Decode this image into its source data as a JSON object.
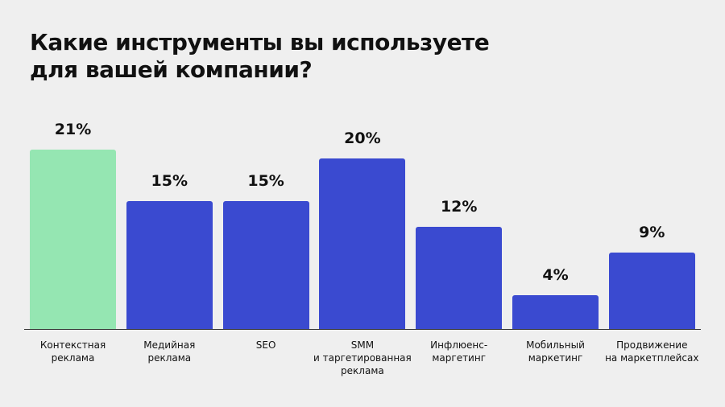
{
  "chart_data": {
    "type": "bar",
    "title": "Какие инструменты вы используете для вашей компании?",
    "categories": [
      "Контекстная\nреклама",
      "Медийная\nреклама",
      "SEO",
      "SMM\nи таргетированная\nреклама",
      "Инфлюенс-\nмаргетинг",
      "Мобильный\nмаркетинг",
      "Продвижение\nна маркетплейсах"
    ],
    "values": [
      21,
      15,
      15,
      20,
      12,
      4,
      9
    ],
    "value_labels": [
      "21%",
      "15%",
      "15%",
      "20%",
      "12%",
      "4%",
      "9%"
    ],
    "colors": [
      "#95e6b2",
      "#3a4ad0",
      "#3a4ad0",
      "#3a4ad0",
      "#3a4ad0",
      "#3a4ad0",
      "#3a4ad0"
    ]
  }
}
